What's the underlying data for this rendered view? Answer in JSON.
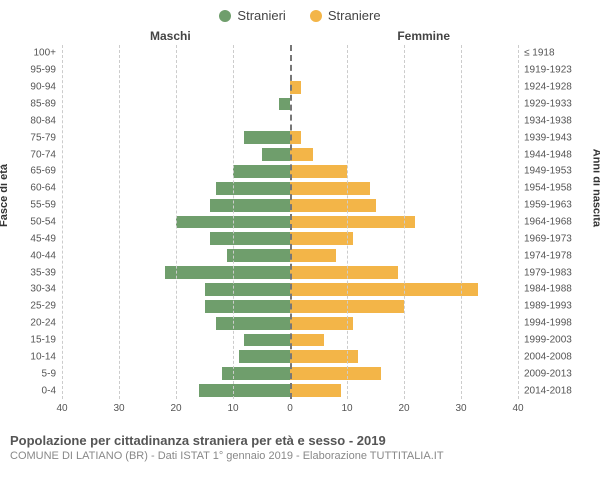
{
  "legend": {
    "male": {
      "label": "Stranieri",
      "color": "#6f9e6c"
    },
    "female": {
      "label": "Straniere",
      "color": "#f3b548"
    }
  },
  "headers": {
    "left": "Maschi",
    "right": "Femmine"
  },
  "yaxis": {
    "left_label": "Fasce di età",
    "right_label": "Anni di nascita"
  },
  "xaxis": {
    "ticks": [
      40,
      30,
      20,
      10,
      0,
      10,
      20,
      30,
      40
    ],
    "max": 40
  },
  "styling": {
    "grid_color": "#cccccc",
    "zero_line_color": "#777777",
    "background": "#ffffff",
    "tick_fontsize": 10,
    "label_fontsize": 11,
    "bar_height_pct": 76
  },
  "rows": [
    {
      "age": "100+",
      "birth": "≤ 1918",
      "male": 0,
      "female": 0
    },
    {
      "age": "95-99",
      "birth": "1919-1923",
      "male": 0,
      "female": 0
    },
    {
      "age": "90-94",
      "birth": "1924-1928",
      "male": 0,
      "female": 2
    },
    {
      "age": "85-89",
      "birth": "1929-1933",
      "male": 2,
      "female": 0
    },
    {
      "age": "80-84",
      "birth": "1934-1938",
      "male": 0,
      "female": 0
    },
    {
      "age": "75-79",
      "birth": "1939-1943",
      "male": 8,
      "female": 2
    },
    {
      "age": "70-74",
      "birth": "1944-1948",
      "male": 5,
      "female": 4
    },
    {
      "age": "65-69",
      "birth": "1949-1953",
      "male": 10,
      "female": 10
    },
    {
      "age": "60-64",
      "birth": "1954-1958",
      "male": 13,
      "female": 14
    },
    {
      "age": "55-59",
      "birth": "1959-1963",
      "male": 14,
      "female": 15
    },
    {
      "age": "50-54",
      "birth": "1964-1968",
      "male": 20,
      "female": 22
    },
    {
      "age": "45-49",
      "birth": "1969-1973",
      "male": 14,
      "female": 11
    },
    {
      "age": "40-44",
      "birth": "1974-1978",
      "male": 11,
      "female": 8
    },
    {
      "age": "35-39",
      "birth": "1979-1983",
      "male": 22,
      "female": 19
    },
    {
      "age": "30-34",
      "birth": "1984-1988",
      "male": 15,
      "female": 33
    },
    {
      "age": "25-29",
      "birth": "1989-1993",
      "male": 15,
      "female": 20
    },
    {
      "age": "20-24",
      "birth": "1994-1998",
      "male": 13,
      "female": 11
    },
    {
      "age": "15-19",
      "birth": "1999-2003",
      "male": 8,
      "female": 6
    },
    {
      "age": "10-14",
      "birth": "2004-2008",
      "male": 9,
      "female": 12
    },
    {
      "age": "5-9",
      "birth": "2009-2013",
      "male": 12,
      "female": 16
    },
    {
      "age": "0-4",
      "birth": "2014-2018",
      "male": 16,
      "female": 9
    }
  ],
  "footer": {
    "title": "Popolazione per cittadinanza straniera per età e sesso - 2019",
    "subtitle": "COMUNE DI LATIANO (BR) - Dati ISTAT 1° gennaio 2019 - Elaborazione TUTTITALIA.IT"
  }
}
